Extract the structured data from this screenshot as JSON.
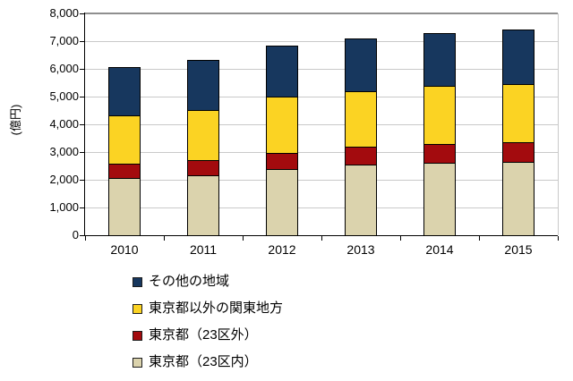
{
  "chart_data": {
    "type": "bar",
    "stacked": true,
    "title": "",
    "ylabel": "(億円)",
    "xlabel": "",
    "categories": [
      "2010",
      "2011",
      "2012",
      "2013",
      "2014",
      "2015"
    ],
    "series": [
      {
        "name": "東京都（23区内）",
        "color": "#DBD3AD",
        "values": [
          2080,
          2170,
          2400,
          2560,
          2610,
          2660
        ]
      },
      {
        "name": "東京都（23区外）",
        "color": "#A30B0E",
        "values": [
          500,
          530,
          560,
          630,
          670,
          680
        ]
      },
      {
        "name": "東京都以外の関東地方",
        "color": "#FBD323",
        "values": [
          1750,
          1830,
          2030,
          2010,
          2100,
          2120
        ]
      },
      {
        "name": "その他の地域",
        "color": "#17375E",
        "values": [
          1720,
          1800,
          1840,
          1900,
          1910,
          1970
        ]
      }
    ],
    "legend_order": [
      "その他の地域",
      "東京都以外の関東地方",
      "東京都（23区外）",
      "東京都（23区内）"
    ],
    "legend_position": "bottom-left",
    "ylim": [
      0,
      8000
    ],
    "ytick_step": 1000,
    "grid": true,
    "colors": {
      "gridline": "#C9C9C9",
      "top_gridline": "#8F8F8F",
      "axis": "#000000",
      "bar_border": "#000000",
      "text": "#000000",
      "background": "#FFFFFF"
    }
  }
}
